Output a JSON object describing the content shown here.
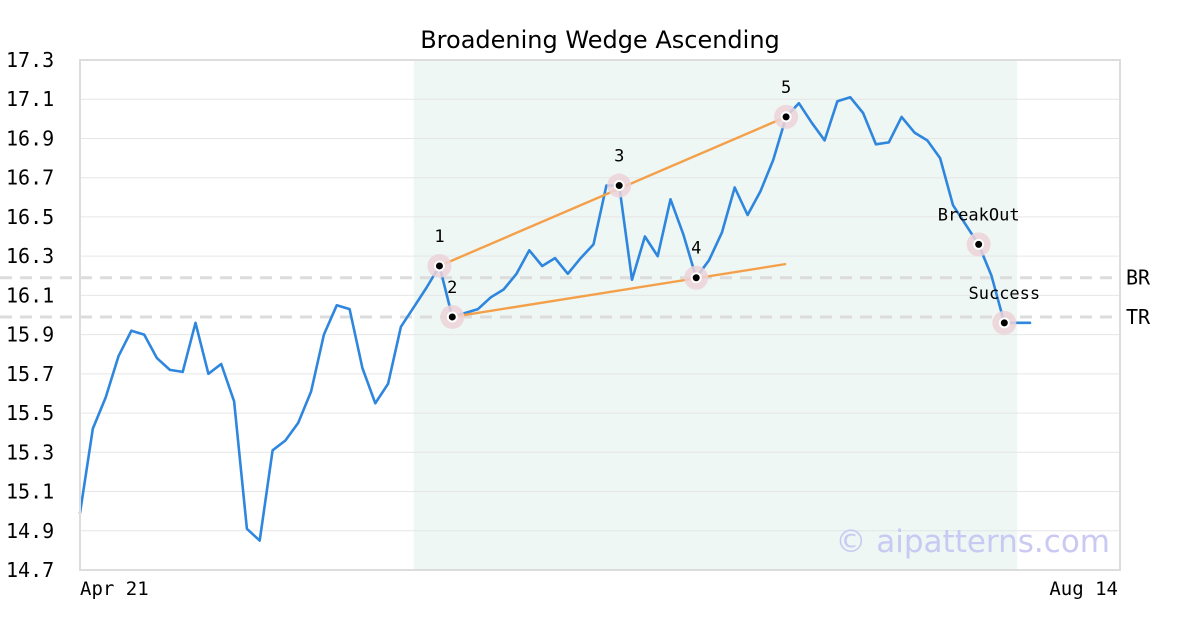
{
  "chart_data": {
    "type": "line",
    "title": "Broadening Wedge Ascending",
    "xlabel": "",
    "ylabel": "",
    "x_tick_labels": [
      "Apr 21",
      "Aug 14"
    ],
    "ylim": [
      14.7,
      17.3
    ],
    "yticks": [
      "14.7",
      "14.9",
      "15.1",
      "15.3",
      "15.5",
      "15.7",
      "15.9",
      "16.1",
      "16.3",
      "16.5",
      "16.7",
      "16.9",
      "17.1",
      "17.3"
    ],
    "grid": true,
    "pattern_region": {
      "start_index": 26,
      "end_index": 73
    },
    "series": [
      {
        "color": "#2e86de",
        "values": [
          14.99,
          15.42,
          15.58,
          15.79,
          15.92,
          15.9,
          15.78,
          15.72,
          15.71,
          15.96,
          15.7,
          15.75,
          15.56,
          14.91,
          14.85,
          15.31,
          15.36,
          15.45,
          15.61,
          15.9,
          16.05,
          16.03,
          15.73,
          15.55,
          15.65,
          15.94,
          16.04,
          16.14,
          16.25,
          15.99,
          16.01,
          16.03,
          16.09,
          16.13,
          16.21,
          16.33,
          16.25,
          16.29,
          16.21,
          16.29,
          16.36,
          16.66,
          16.66,
          16.18,
          16.4,
          16.3,
          16.59,
          16.41,
          16.19,
          16.28,
          16.42,
          16.65,
          16.51,
          16.63,
          16.79,
          17.01,
          17.08,
          16.98,
          16.89,
          17.09,
          17.11,
          17.03,
          16.87,
          16.88,
          17.01,
          16.93,
          16.89,
          16.8,
          16.56,
          16.46,
          16.36,
          16.2,
          15.96,
          15.96,
          15.96
        ]
      }
    ],
    "pattern_lines": [
      {
        "color": "#f4a04a",
        "from": {
          "index": 28,
          "value": 16.25
        },
        "to": {
          "index": 55,
          "value": 17.01
        }
      },
      {
        "color": "#f4a04a",
        "from": {
          "index": 29,
          "value": 15.99
        },
        "to": {
          "index": 55,
          "value": 16.26
        }
      }
    ],
    "points": [
      {
        "label": "1",
        "index": 28,
        "value": 16.25,
        "label_pos": "above"
      },
      {
        "label": "2",
        "index": 29,
        "value": 15.99,
        "label_pos": "above"
      },
      {
        "label": "3",
        "index": 42,
        "value": 16.66,
        "label_pos": "above"
      },
      {
        "label": "4",
        "index": 48,
        "value": 16.19,
        "label_pos": "above"
      },
      {
        "label": "5",
        "index": 55,
        "value": 17.01,
        "label_pos": "above"
      },
      {
        "label": "BreakOut",
        "index": 70,
        "value": 16.36,
        "label_pos": "above"
      },
      {
        "label": "Success",
        "index": 72,
        "value": 15.96,
        "label_pos": "above"
      }
    ],
    "reference_lines": [
      {
        "label": "BR",
        "value": 16.19
      },
      {
        "label": "TR",
        "value": 15.99
      }
    ],
    "colors": {
      "line": "#2e86de",
      "pattern": "#f4a04a",
      "shade": "#eef7f3",
      "marker_ring": "#ecd4d8"
    }
  },
  "watermark": "© aipatterns.com"
}
